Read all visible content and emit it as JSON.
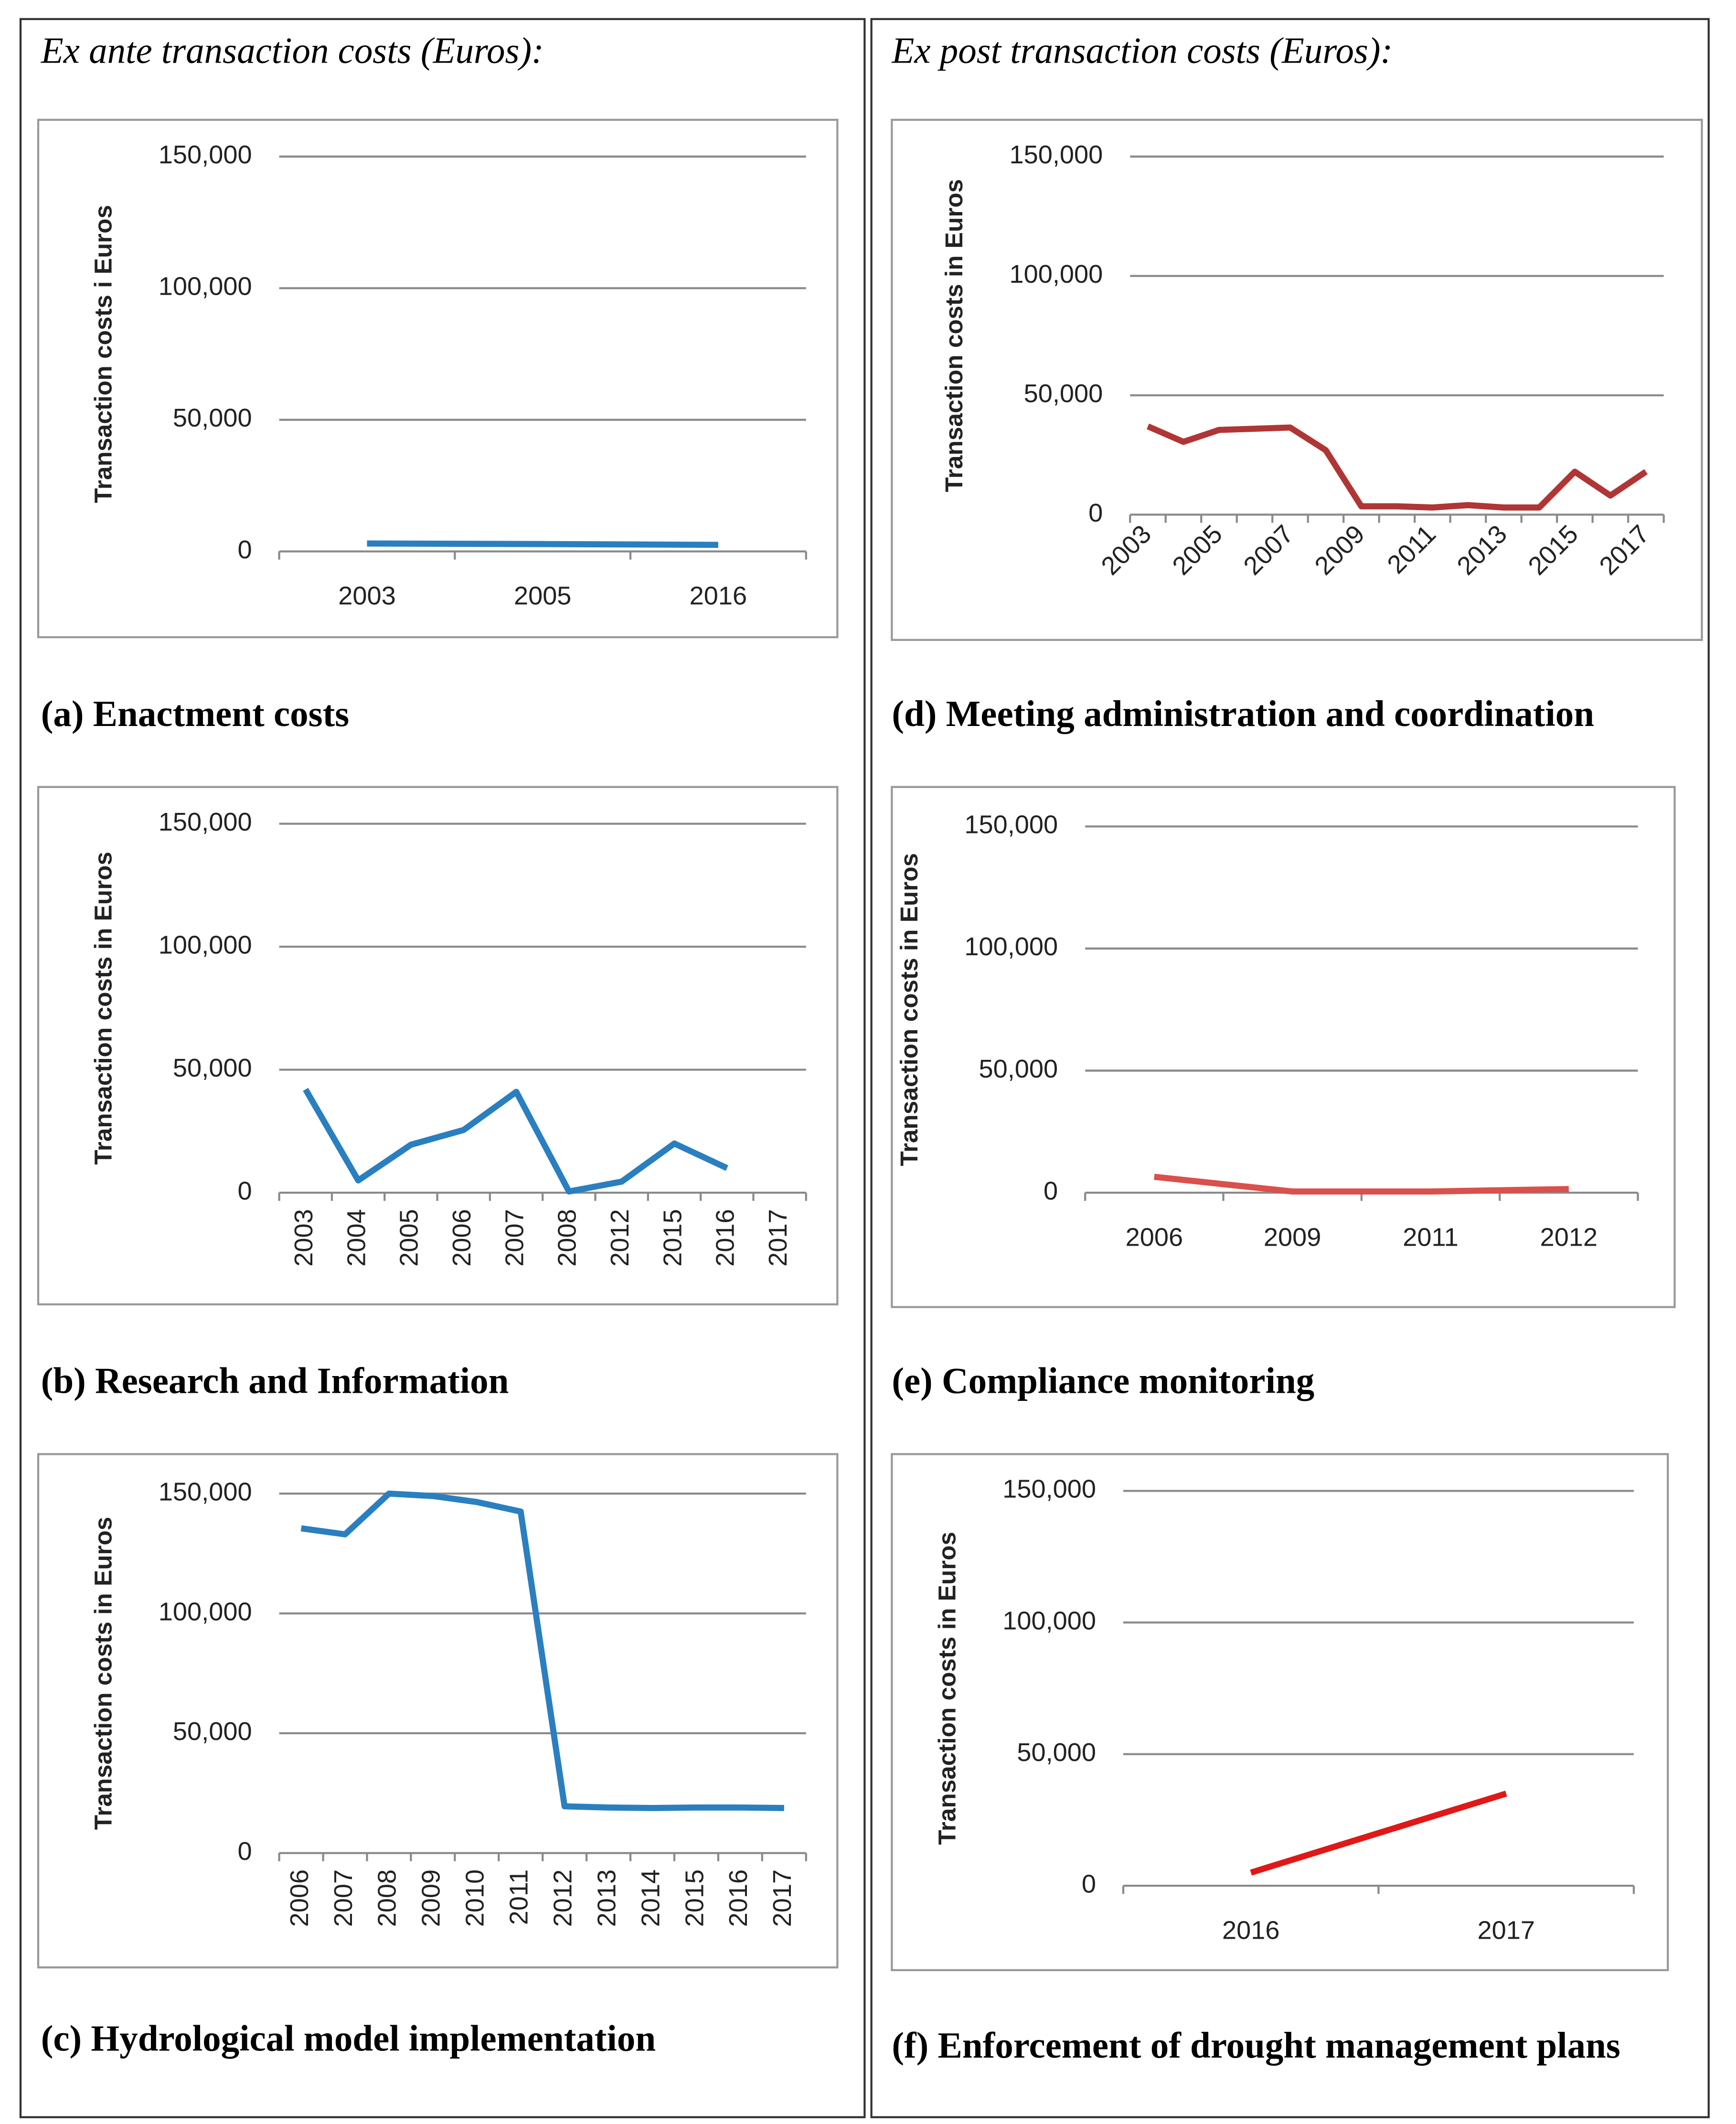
{
  "column_headers": [
    "Ex ante transaction costs (Euros):",
    "Ex post transaction costs (Euros):"
  ],
  "chart_data": [
    {
      "type": "line",
      "caption": "(a) Enactment costs",
      "y_label": "Transaction costs i Euros",
      "color": "#2a7fc0",
      "categories": [
        "2003",
        "2005",
        "2016"
      ],
      "values": [
        3000,
        2800,
        2500
      ],
      "ylim": [
        0,
        150000
      ],
      "yticks": [
        0,
        {
          "value": 50000,
          "label": "50,000"
        },
        {
          "value": 100000,
          "label": "100,000"
        },
        {
          "value": 150000,
          "label": "150,000"
        }
      ],
      "grid": true
    },
    {
      "type": "line",
      "caption": "(b) Research and Information",
      "y_label": "Transaction costs in Euros",
      "color": "#2a7fc0",
      "categories": [
        "2003",
        "2004",
        "2005",
        "2006",
        "2007",
        "2008",
        "2012",
        "2015",
        "2016",
        "2017"
      ],
      "values": [
        42000,
        5000,
        19500,
        25500,
        41000,
        500,
        4500,
        20000,
        10000,
        null
      ],
      "ylim": [
        0,
        150000
      ],
      "yticks": [
        0,
        {
          "value": 50000,
          "label": "50,000"
        },
        {
          "value": 100000,
          "label": "100,000"
        },
        {
          "value": 150000,
          "label": "150,000"
        }
      ],
      "grid": true
    },
    {
      "type": "line",
      "caption": "(c) Hydrological model implementation",
      "y_label": "Transaction costs in Euros",
      "color": "#2a7fc0",
      "categories": [
        "2006",
        "2007",
        "2008",
        "2009",
        "2010",
        "2011",
        "2012",
        "2013",
        "2014",
        "2015",
        "2016",
        "2017"
      ],
      "values": [
        135500,
        133000,
        150000,
        149000,
        146500,
        142500,
        19500,
        19000,
        18800,
        19000,
        19000,
        18800
      ],
      "ylim": [
        0,
        150000
      ],
      "yticks": [
        0,
        {
          "value": 50000,
          "label": "50,000"
        },
        {
          "value": 100000,
          "label": "100,000"
        },
        {
          "value": 150000,
          "label": "150,000"
        }
      ],
      "grid": true
    },
    {
      "type": "line",
      "caption": "(d) Meeting administration and coordination",
      "y_label": "Transaction costs in Euros",
      "color": "#b03535",
      "categories": [
        "2003",
        null,
        "2005",
        null,
        "2007",
        null,
        "2009",
        null,
        "2011",
        null,
        "2013",
        null,
        "2015",
        null,
        "2017"
      ],
      "values": [
        37000,
        30500,
        35500,
        36000,
        36500,
        27000,
        3500,
        3500,
        3000,
        4000,
        3000,
        3000,
        18000,
        8000,
        18000
      ],
      "ylim": [
        0,
        150000
      ],
      "yticks": [
        0,
        {
          "value": 50000,
          "label": "50,000"
        },
        {
          "value": 100000,
          "label": "100,000"
        },
        {
          "value": 150000,
          "label": "150,000"
        }
      ],
      "grid": true
    },
    {
      "type": "line",
      "caption": "(e) Compliance monitoring",
      "y_label": "Transaction costs in Euros",
      "color": "#d9504c",
      "categories": [
        "2006",
        "2009",
        "2011",
        "2012"
      ],
      "values": [
        6500,
        500,
        500,
        1500
      ],
      "ylim": [
        0,
        150000
      ],
      "yticks": [
        0,
        {
          "value": 50000,
          "label": "50,000"
        },
        {
          "value": 100000,
          "label": "100,000"
        },
        {
          "value": 150000,
          "label": "150,000"
        }
      ],
      "grid": true
    },
    {
      "type": "line",
      "caption": "(f) Enforcement of drought management plans",
      "y_label": "Transaction costs in Euros",
      "color": "#e01818",
      "categories": [
        "2016",
        "2017"
      ],
      "values": [
        5000,
        35000
      ],
      "ylim": [
        0,
        150000
      ],
      "yticks": [
        0,
        {
          "value": 50000,
          "label": "50,000"
        },
        {
          "value": 100000,
          "label": "100,000"
        },
        {
          "value": 150000,
          "label": "150,000"
        }
      ],
      "grid": true
    }
  ]
}
